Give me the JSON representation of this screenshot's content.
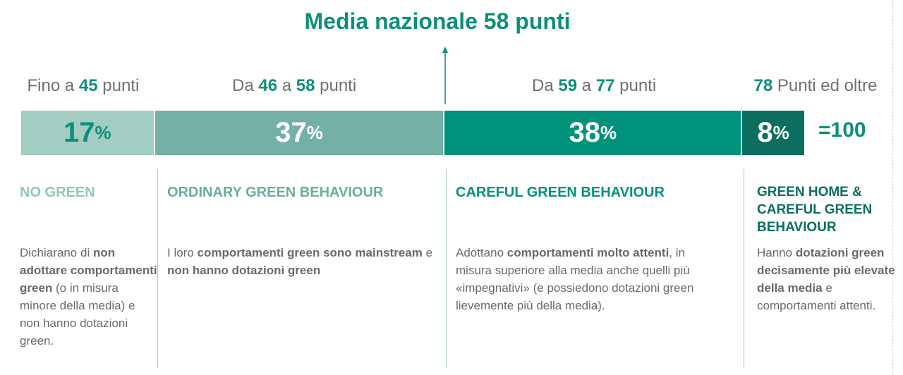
{
  "headline": "Media nazionale 58 punti",
  "total_label": "=100",
  "colors": {
    "accent": "#0e8f7a",
    "text": "#6a6a6a"
  },
  "chart_data": {
    "type": "bar",
    "orientation": "horizontal-stacked",
    "title": "Media nazionale 58 punti",
    "average": 58,
    "unit": "%",
    "total": 100,
    "categories": [
      "NO GREEN",
      "ORDINARY GREEN BEHAVIOUR",
      "CAREFUL GREEN BEHAVIOUR",
      "GREEN HOME & CAREFUL GREEN BEHAVIOUR"
    ],
    "values": [
      17,
      37,
      38,
      8
    ],
    "colors": [
      "#a3cdc3",
      "#74b0a6",
      "#00927b",
      "#0b6e5e"
    ],
    "text_colors": [
      "#0e8f7a",
      "#ffffff",
      "#ffffff",
      "#ffffff"
    ]
  },
  "segments": [
    {
      "range_parts": [
        {
          "text": "Fino a ",
          "bold": false
        },
        {
          "text": "45",
          "bold": true
        },
        {
          "text": " punti",
          "bold": false
        }
      ],
      "title": "NO GREEN",
      "title_color": "#8fc8bd",
      "desc_parts": [
        {
          "text": "Dichiarano di ",
          "bold": false
        },
        {
          "text": "non adottare comportamenti green",
          "bold": true
        },
        {
          "text": "  (o in misura minore della media) e non hanno dotazioni green.",
          "bold": false
        }
      ]
    },
    {
      "range_parts": [
        {
          "text": "Da ",
          "bold": false
        },
        {
          "text": "46",
          "bold": true
        },
        {
          "text": " a ",
          "bold": false
        },
        {
          "text": "58",
          "bold": true
        },
        {
          "text": " punti",
          "bold": false
        }
      ],
      "title": "ORDINARY GREEN BEHAVIOUR",
      "title_color": "#6aada2",
      "desc_parts": [
        {
          "text": "I loro ",
          "bold": false
        },
        {
          "text": "comportamenti green sono mainstream",
          "bold": true
        },
        {
          "text": " e ",
          "bold": false
        },
        {
          "text": "non hanno dotazioni green",
          "bold": true
        }
      ]
    },
    {
      "range_parts": [
        {
          "text": "Da ",
          "bold": false
        },
        {
          "text": "59",
          "bold": true
        },
        {
          "text": " a ",
          "bold": false
        },
        {
          "text": "77",
          "bold": true
        },
        {
          "text": " punti",
          "bold": false
        }
      ],
      "title": "CAREFUL GREEN BEHAVIOUR",
      "title_color": "#00927b",
      "desc_parts": [
        {
          "text": "Adottano ",
          "bold": false
        },
        {
          "text": "comportamenti molto attenti",
          "bold": true
        },
        {
          "text": ", in misura superiore alla media anche quelli più «impegnativi» (e possiedono dotazioni green lievemente più della media).",
          "bold": false
        }
      ]
    },
    {
      "range_parts": [
        {
          "text": "78",
          "bold": true
        },
        {
          "text": " Punti ed oltre",
          "bold": false
        }
      ],
      "title": "GREEN HOME & CAREFUL GREEN BEHAVIOUR",
      "title_color": "#0b6e5e",
      "desc_parts": [
        {
          "text": "Hanno ",
          "bold": false
        },
        {
          "text": "dotazioni green decisamente più elevate della media",
          "bold": true
        },
        {
          "text": " e comportamenti attenti.",
          "bold": false
        }
      ]
    }
  ]
}
